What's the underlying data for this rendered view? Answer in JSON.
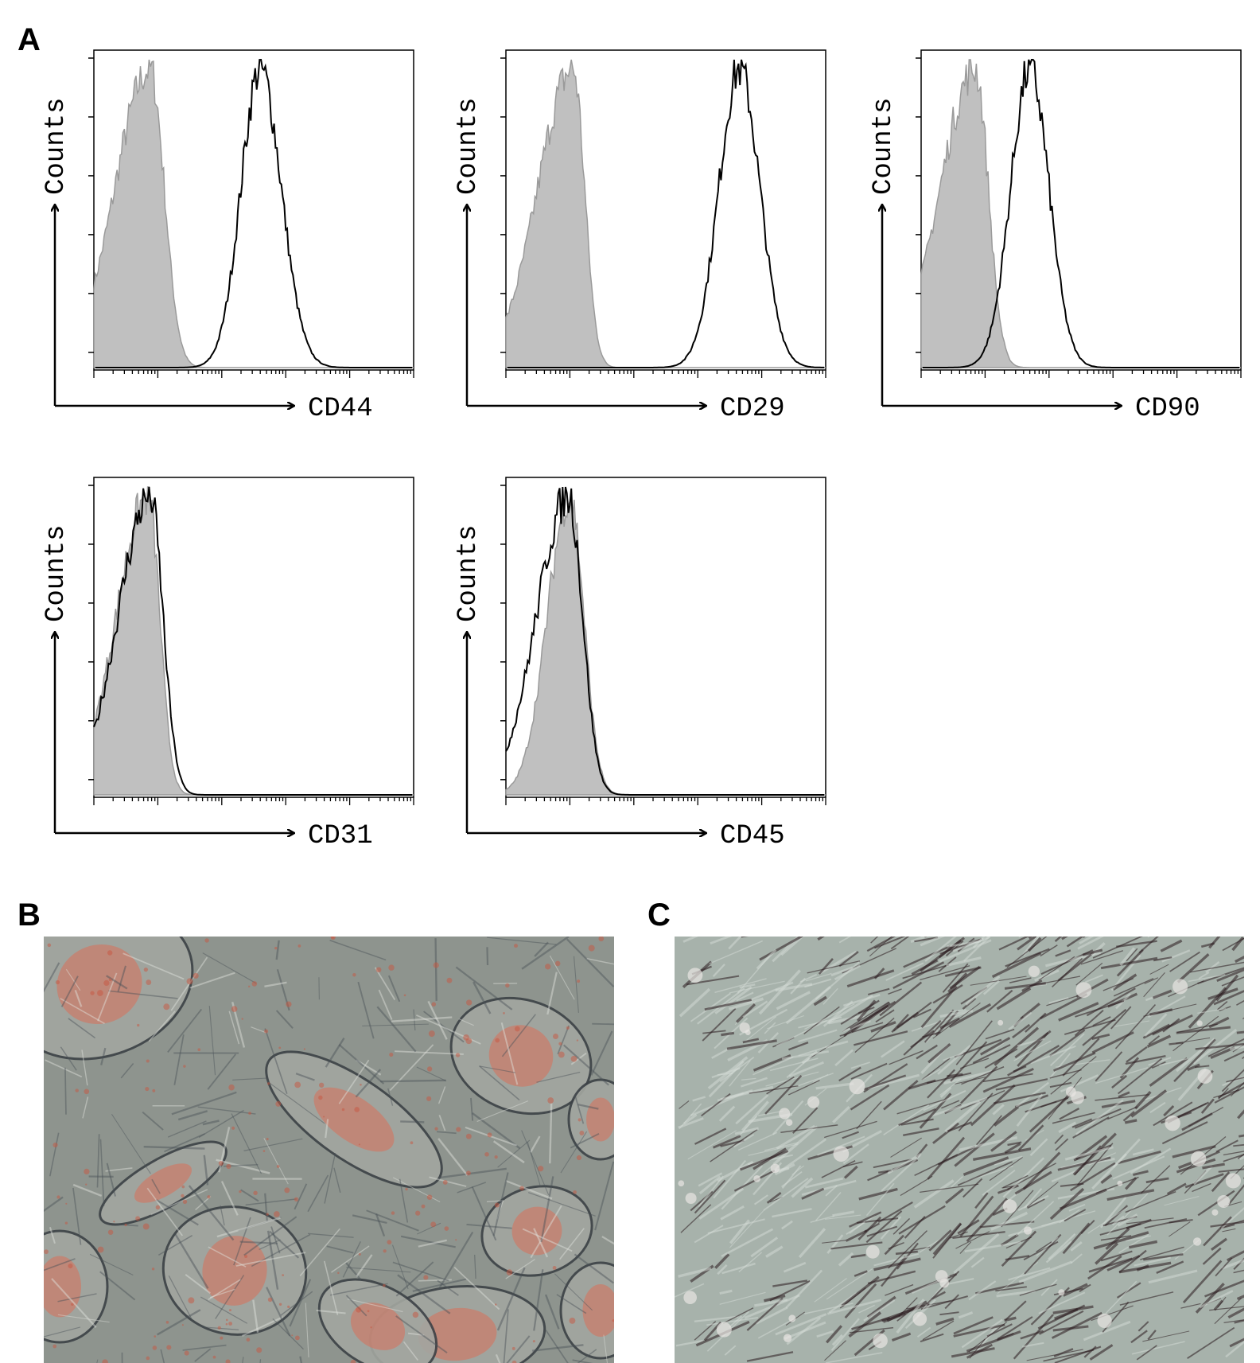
{
  "panels": {
    "a_label": "A",
    "b_label": "B",
    "c_label": "C"
  },
  "colors": {
    "isotype_fill": "#c0c0c0",
    "isotype_stroke": "#9a9a9a",
    "stain_line": "#000000",
    "micro_b_bg": "#8e948e",
    "micro_b_stain": "#d8705a",
    "micro_c_bg": "#a7b2ab",
    "micro_c_stain": "#2a1a1e"
  },
  "chart_data": [
    {
      "type": "area",
      "ylabel": "Counts",
      "xlabel": "CD44",
      "series": [
        {
          "role": "isotype",
          "peak": 0.88,
          "left": 0.55,
          "right": 0.22
        },
        {
          "role": "stain",
          "peak": 2.6,
          "left": 0.3,
          "right": 0.33
        }
      ]
    },
    {
      "type": "area",
      "ylabel": "Counts",
      "xlabel": "CD29",
      "series": [
        {
          "role": "isotype",
          "peak": 1.05,
          "left": 0.55,
          "right": 0.18
        },
        {
          "role": "stain",
          "peak": 3.65,
          "left": 0.32,
          "right": 0.32
        }
      ]
    },
    {
      "type": "area",
      "ylabel": "Counts",
      "xlabel": "CD90",
      "series": [
        {
          "role": "isotype",
          "peak": 0.85,
          "left": 0.55,
          "right": 0.2
        },
        {
          "role": "stain",
          "peak": 1.7,
          "left": 0.3,
          "right": 0.3
        }
      ]
    },
    {
      "type": "area",
      "ylabel": "Counts",
      "xlabel": "CD31",
      "series": [
        {
          "role": "isotype",
          "peak": 0.85,
          "left": 0.5,
          "right": 0.18
        },
        {
          "role": "stain",
          "peak": 0.88,
          "left": 0.5,
          "right": 0.2
        }
      ]
    },
    {
      "type": "area",
      "ylabel": "Counts",
      "xlabel": "CD45",
      "series": [
        {
          "role": "isotype",
          "peak": 1.0,
          "left": 0.35,
          "right": 0.22
        },
        {
          "role": "stain",
          "peak": 0.98,
          "left": 0.5,
          "right": 0.22
        }
      ]
    }
  ]
}
